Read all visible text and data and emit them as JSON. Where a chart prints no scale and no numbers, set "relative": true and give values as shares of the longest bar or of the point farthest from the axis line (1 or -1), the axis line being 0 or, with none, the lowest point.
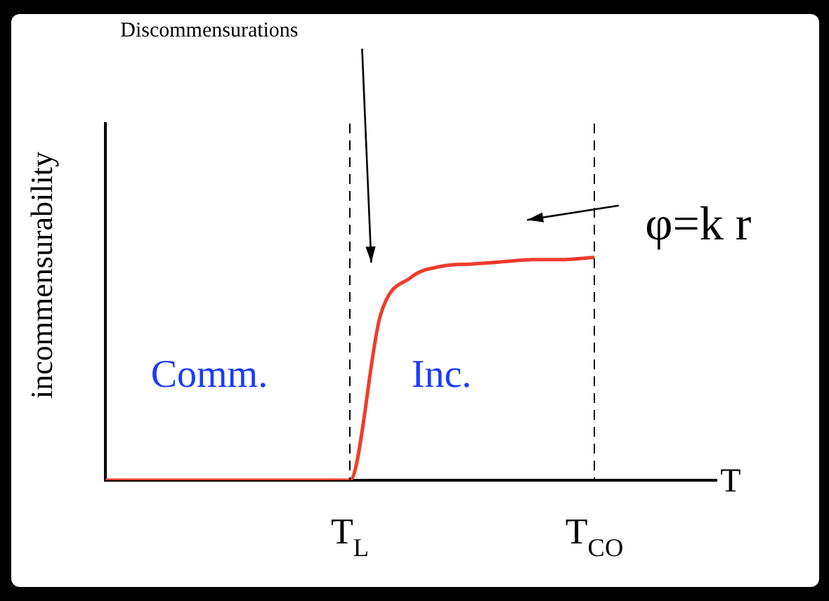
{
  "chart_data": {
    "type": "line",
    "relative": true,
    "xlabel": "T",
    "ylabel": "incommensurability",
    "categories": [
      null,
      null,
      null,
      null,
      null,
      null,
      null,
      null,
      "T$_{L}$",
      null,
      null,
      null,
      null,
      null,
      null,
      null,
      "T$_{CO}$",
      null,
      null,
      null,
      null
    ],
    "series": [
      {
        "color": "#f03c2c",
        "values": [
          0,
          0,
          0,
          0,
          0,
          0,
          0,
          0,
          0,
          0.74,
          0.91,
          0.96,
          0.97,
          0.98,
          0.99,
          0.99,
          1,
          null,
          null,
          null,
          null
        ]
      }
    ],
    "tick_labels": "x",
    "grid": false,
    "legend": false,
    "marker": "none",
    "line_style": "solid",
    "ref_lines": [
      {
        "axis": "x",
        "value": "T$_{L}$",
        "color": "#000000",
        "line_style": "dashed"
      },
      {
        "axis": "x",
        "value": "T$_{CO}$",
        "color": "#000000",
        "line_style": "dashed"
      }
    ],
    "annotations": [
      "Discommensurations",
      "φ=k r",
      "Comm.",
      "Inc."
    ]
  }
}
